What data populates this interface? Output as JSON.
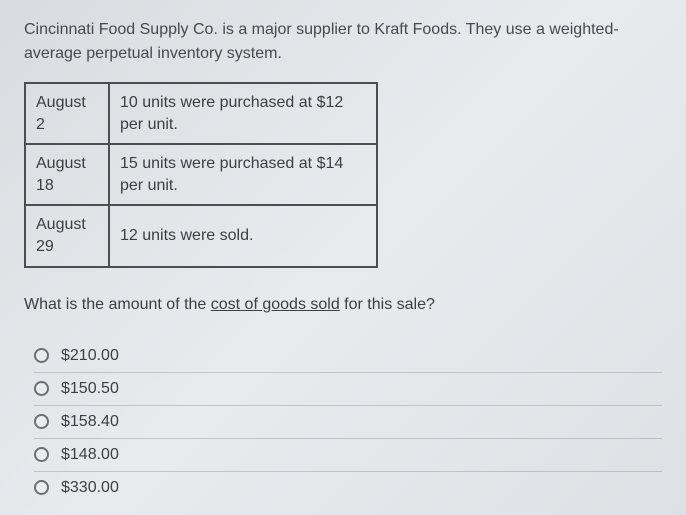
{
  "intro": "Cincinnati Food Supply Co. is a major supplier to Kraft Foods.  They use a weighted-average perpetual inventory system.",
  "table": {
    "rows": [
      {
        "date": "August 2",
        "desc": "10 units were purchased at $12 per unit."
      },
      {
        "date": "August 18",
        "desc": "15 units were purchased at $14 per unit."
      },
      {
        "date": "August 29",
        "desc": "12 units were sold."
      }
    ]
  },
  "question": {
    "prefix": "What is the amount of the ",
    "underlined": "cost of goods sold",
    "suffix": " for this sale?"
  },
  "options": [
    {
      "label": "$210.00"
    },
    {
      "label": "$150.50"
    },
    {
      "label": "$158.40"
    },
    {
      "label": "$148.00"
    },
    {
      "label": "$330.00"
    }
  ],
  "colors": {
    "text": "#3a3f44",
    "border": "#4a4f55",
    "radio_border": "#6a6f74",
    "divider": "rgba(120,125,130,0.35)"
  }
}
